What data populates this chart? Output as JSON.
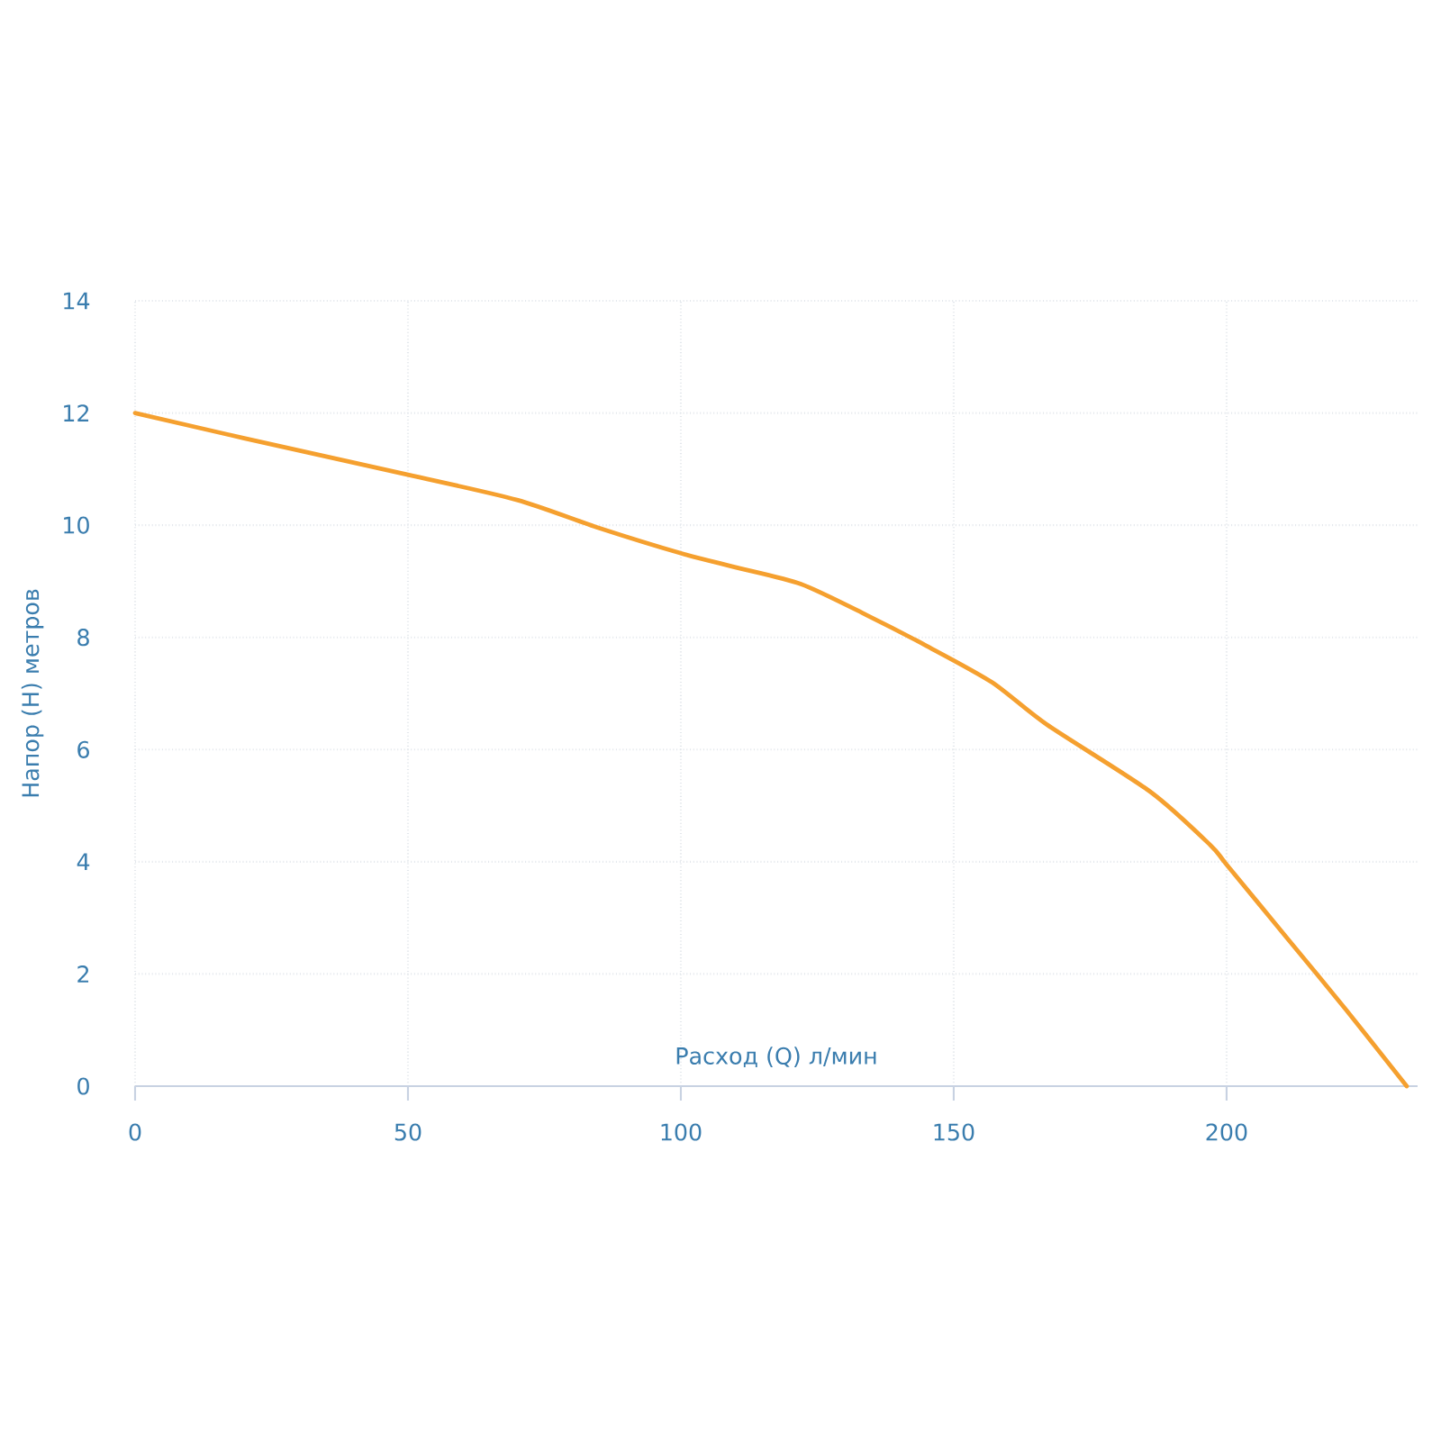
{
  "chart_data": {
    "type": "line",
    "xlabel": "Расход (Q) л/мин",
    "ylabel": "Напор (H) метров",
    "x": [
      0,
      20,
      50,
      70,
      85,
      100,
      110,
      122,
      134,
      145,
      157,
      167,
      186,
      197,
      200,
      211,
      222,
      233
    ],
    "series": [
      {
        "color": "#f5a02f",
        "values": [
          12,
          11.55,
          10.9,
          10.45,
          9.95,
          9.5,
          9.25,
          8.95,
          8.4,
          7.85,
          7.2,
          6.45,
          5.25,
          4.3,
          3.95,
          2.65,
          1.35,
          0
        ]
      }
    ],
    "xlim": [
      0,
      235
    ],
    "ylim": [
      0,
      14
    ],
    "xticks": [
      0,
      50,
      100,
      150,
      200
    ],
    "yticks": [
      0,
      2,
      4,
      6,
      8,
      10,
      12,
      14
    ],
    "grid": true
  }
}
